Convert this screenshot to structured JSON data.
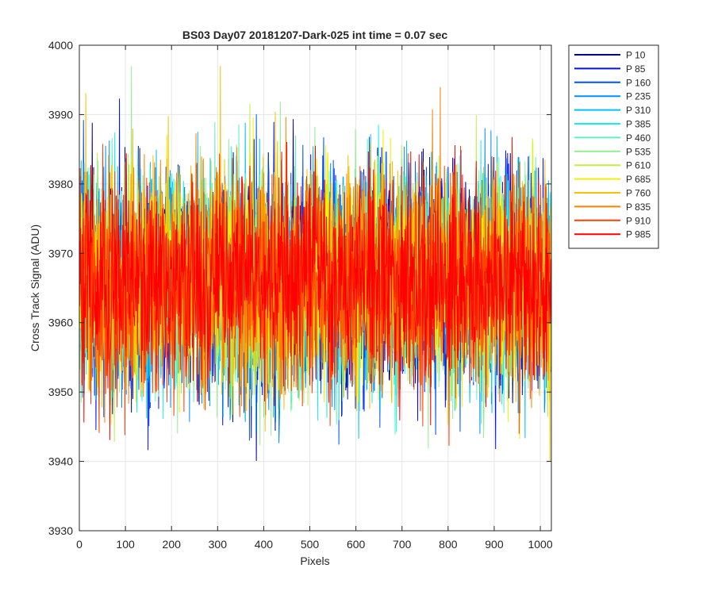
{
  "chart_data": {
    "type": "line",
    "title": "BS03 Day07 20181207-Dark-025 int time = 0.07 sec",
    "xlabel": "Pixels",
    "ylabel": "Cross Track Signal (ADU)",
    "xlim": [
      0,
      1024
    ],
    "ylim": [
      3930,
      4000
    ],
    "xticks": [
      0,
      100,
      200,
      300,
      400,
      500,
      600,
      700,
      800,
      900,
      1000
    ],
    "yticks": [
      3930,
      3940,
      3950,
      3960,
      3970,
      3980,
      3990,
      4000
    ],
    "grid": true,
    "legend_position": "outside-top-right",
    "signal_summary": {
      "mean": 3966,
      "std_dev": 7.5,
      "min": 3936,
      "max": 3997
    },
    "series": [
      {
        "name": "P 10",
        "color": "#00008F"
      },
      {
        "name": "P 85",
        "color": "#0010FF"
      },
      {
        "name": "P 160",
        "color": "#0050FF"
      },
      {
        "name": "P 235",
        "color": "#0090FF"
      },
      {
        "name": "P 310",
        "color": "#00C0FF"
      },
      {
        "name": "P 385",
        "color": "#10F0F0"
      },
      {
        "name": "P 460",
        "color": "#60F0C0"
      },
      {
        "name": "P 535",
        "color": "#90F090"
      },
      {
        "name": "P 610",
        "color": "#C0F040"
      },
      {
        "name": "P 685",
        "color": "#F0F000"
      },
      {
        "name": "P 760",
        "color": "#F8C000"
      },
      {
        "name": "P 835",
        "color": "#FF8000"
      },
      {
        "name": "P 910",
        "color": "#FF4000"
      },
      {
        "name": "P 985",
        "color": "#FF0000"
      }
    ]
  }
}
